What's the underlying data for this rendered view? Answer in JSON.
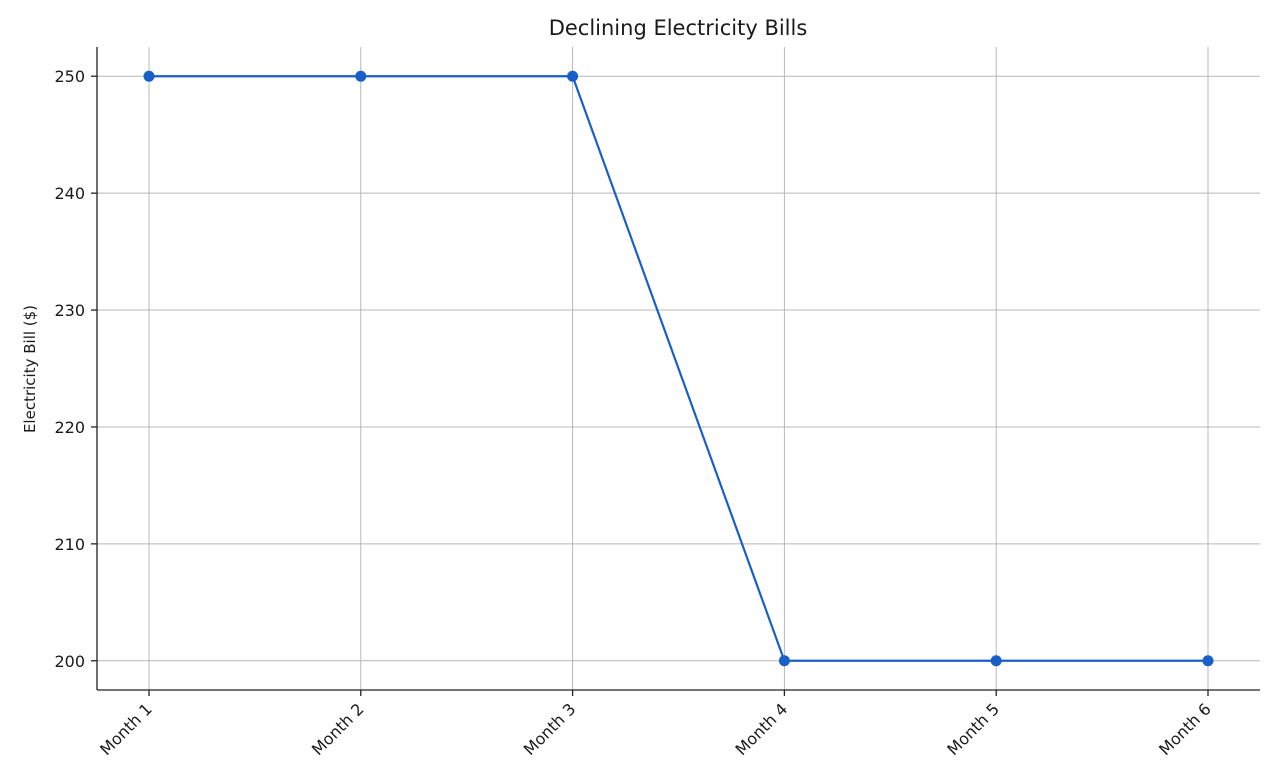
{
  "chart_data": {
    "type": "line",
    "title": "Declining Electricity Bills",
    "xlabel": "",
    "ylabel": "Electricity Bill ($)",
    "categories": [
      "Month 1",
      "Month 2",
      "Month 3",
      "Month 4",
      "Month 5",
      "Month 6"
    ],
    "series": [
      {
        "values": [
          250,
          250,
          250,
          200,
          200,
          200
        ],
        "color": "#1a5fc8"
      }
    ],
    "yticks": [
      200,
      210,
      220,
      230,
      240,
      250
    ],
    "ylim": [
      197.5,
      252.5
    ],
    "grid": true,
    "legend": "none"
  }
}
